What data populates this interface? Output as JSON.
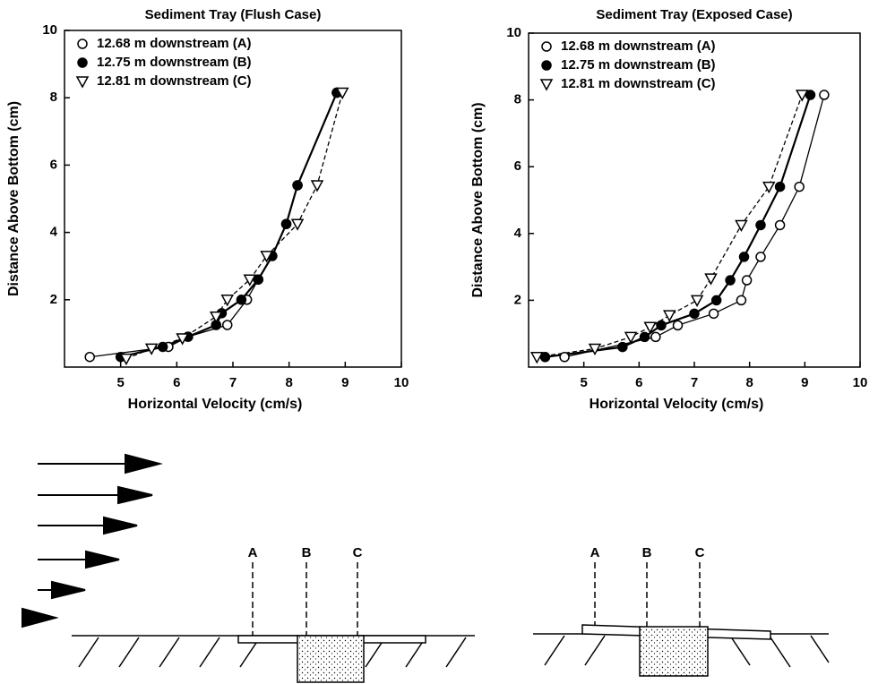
{
  "chart_data": [
    {
      "type": "line",
      "title": "Sediment Tray (Flush Case)",
      "xlabel": "Horizontal Velocity (cm/s)",
      "ylabel": "Distance Above Bottom (cm)",
      "xlim": [
        4,
        10
      ],
      "ylim": [
        0,
        10
      ],
      "xticks": [
        5,
        6,
        7,
        8,
        9,
        10
      ],
      "yticks": [
        2,
        4,
        6,
        8,
        10
      ],
      "legend": "upper left",
      "series": [
        {
          "name": "12.68 m downstream (A)",
          "color": "#000000",
          "marker": "circle-open",
          "dashed": false,
          "x": [
            4.45,
            5.85,
            6.2,
            6.9,
            7.25,
            7.45,
            7.7,
            7.95,
            8.15,
            8.85
          ],
          "values": [
            0.3,
            0.6,
            0.9,
            1.25,
            2.0,
            2.6,
            3.3,
            4.25,
            5.4,
            8.15
          ]
        },
        {
          "name": "12.75 m downstream (B)",
          "color": "#000000",
          "marker": "circle-filled",
          "dashed": false,
          "x": [
            5.0,
            5.75,
            6.2,
            6.7,
            6.8,
            7.15,
            7.45,
            7.7,
            7.95,
            8.15,
            8.85
          ],
          "values": [
            0.3,
            0.6,
            0.9,
            1.25,
            1.6,
            2.0,
            2.6,
            3.3,
            4.25,
            5.4,
            8.15
          ]
        },
        {
          "name": "12.81 m downstream (C)",
          "color": "#000000",
          "marker": "triangle-down",
          "dashed": true,
          "x": [
            5.1,
            5.55,
            6.1,
            6.7,
            6.9,
            7.3,
            7.6,
            8.15,
            8.5,
            8.95
          ],
          "values": [
            0.25,
            0.55,
            0.85,
            1.5,
            2.0,
            2.6,
            3.3,
            4.25,
            5.4,
            8.15
          ]
        }
      ]
    },
    {
      "type": "line",
      "title": "Sediment Tray (Exposed Case)",
      "xlabel": "Horizontal Velocity (cm/s)",
      "ylabel": "Distance Above Bottom (cm)",
      "xlim": [
        4,
        10
      ],
      "ylim": [
        0,
        10
      ],
      "xticks": [
        5,
        6,
        7,
        8,
        9,
        10
      ],
      "yticks": [
        2,
        4,
        6,
        8,
        10
      ],
      "legend": "upper left",
      "series": [
        {
          "name": "12.68 m downstream (A)",
          "color": "#000000",
          "marker": "circle-open",
          "dashed": false,
          "x": [
            4.65,
            6.3,
            6.7,
            7.35,
            7.85,
            7.95,
            8.2,
            8.55,
            8.9,
            9.35
          ],
          "values": [
            0.3,
            0.9,
            1.25,
            1.6,
            2.0,
            2.6,
            3.3,
            4.25,
            5.4,
            8.15
          ]
        },
        {
          "name": "12.75 m downstream (B)",
          "color": "#000000",
          "marker": "circle-filled",
          "dashed": false,
          "x": [
            4.3,
            5.7,
            6.1,
            6.4,
            7.0,
            7.4,
            7.65,
            7.9,
            8.2,
            8.55,
            9.1
          ],
          "values": [
            0.3,
            0.6,
            0.9,
            1.25,
            1.6,
            2.0,
            2.6,
            3.3,
            4.25,
            5.4,
            8.15
          ]
        },
        {
          "name": "12.81 m downstream (C)",
          "color": "#000000",
          "marker": "triangle-down",
          "dashed": true,
          "x": [
            4.15,
            5.2,
            5.85,
            6.2,
            6.55,
            7.05,
            7.3,
            7.85,
            8.35,
            8.95
          ],
          "values": [
            0.3,
            0.55,
            0.9,
            1.2,
            1.55,
            2.0,
            2.65,
            4.25,
            5.4,
            8.15
          ]
        }
      ]
    }
  ],
  "diagrams": [
    {
      "labels": [
        "A",
        "B",
        "C"
      ]
    },
    {
      "labels": [
        "A",
        "B",
        "C"
      ]
    }
  ]
}
